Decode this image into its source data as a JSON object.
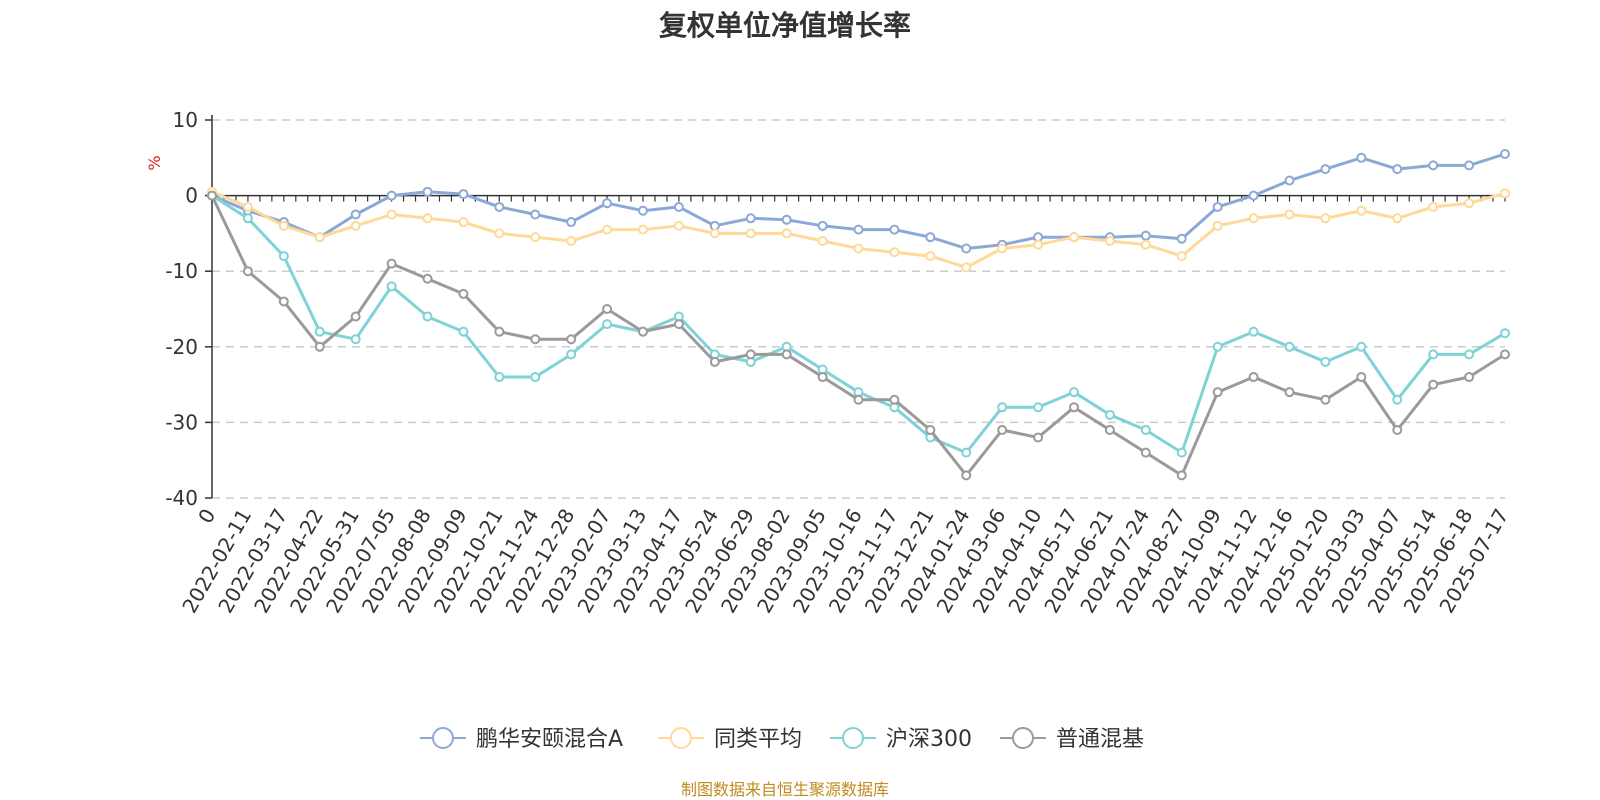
{
  "title": "复权单位净值增长率",
  "source": "制图数据来自恒生聚源数据库",
  "chart_data": {
    "type": "line",
    "title": "复权单位净值增长率",
    "ylabel": "%",
    "ylim": [
      -40,
      10
    ],
    "yticks": [
      10,
      0,
      -10,
      -20,
      -30,
      -40
    ],
    "grid": true,
    "legend_position": "bottom-center",
    "x": [
      "0",
      "2022-02-11",
      "2022-03-17",
      "2022-04-22",
      "2022-05-31",
      "2022-07-05",
      "2022-08-08",
      "2022-09-09",
      "2022-10-21",
      "2022-11-24",
      "2022-12-28",
      "2023-02-07",
      "2023-03-13",
      "2023-04-17",
      "2023-05-24",
      "2023-06-29",
      "2023-08-02",
      "2023-09-05",
      "2023-10-16",
      "2023-11-17",
      "2023-12-21",
      "2024-01-24",
      "2024-03-06",
      "2024-04-10",
      "2024-05-17",
      "2024-06-21",
      "2024-07-24",
      "2024-08-27",
      "2024-10-09",
      "2024-11-12",
      "2024-12-16",
      "2025-01-20",
      "2025-03-03",
      "2025-04-07",
      "2025-05-14",
      "2025-06-18",
      "2025-07-17"
    ],
    "series": [
      {
        "name": "鹏华安颐混合A",
        "color": "#8ba8d6",
        "values": [
          0,
          -2,
          -3.5,
          -5.5,
          -2.5,
          0,
          0.5,
          0.2,
          -1.5,
          -2.5,
          -3.5,
          -1,
          -2,
          -1.5,
          -4,
          -3,
          -3.2,
          -4,
          -4.5,
          -4.5,
          -5.5,
          -7,
          -6.5,
          -5.5,
          -5.5,
          -5.5,
          -5.3,
          -5.7,
          -1.5,
          0,
          2,
          3.5,
          5,
          3.5,
          4,
          4,
          5.5
        ]
      },
      {
        "name": "同类平均",
        "color": "#ffd99a",
        "values": [
          0.5,
          -1.5,
          -4,
          -5.5,
          -4,
          -2.5,
          -3,
          -3.5,
          -5,
          -5.5,
          -6,
          -4.5,
          -4.5,
          -4,
          -5,
          -5,
          -5,
          -6,
          -7,
          -7.5,
          -8,
          -9.5,
          -7,
          -6.5,
          -5.5,
          -6,
          -6.5,
          -8,
          -4,
          -3,
          -2.5,
          -3,
          -2,
          -3,
          -1.5,
          -1,
          0.3
        ]
      },
      {
        "name": "沪深300",
        "color": "#7dd3d6",
        "values": [
          0,
          -3,
          -8,
          -18,
          -19,
          -12,
          -16,
          -18,
          -24,
          -24,
          -21,
          -17,
          -18,
          -16,
          -21,
          -22,
          -20,
          -23,
          -26,
          -28,
          -32,
          -34,
          -28,
          -28,
          -26,
          -29,
          -31,
          -34,
          -20,
          -18,
          -20,
          -22,
          -20,
          -27,
          -21,
          -21,
          -18.2
        ]
      },
      {
        "name": "普通混基",
        "color": "#9a9a9a",
        "values": [
          0,
          -10,
          -14,
          -20,
          -16,
          -9,
          -11,
          -13,
          -18,
          -19,
          -19,
          -15,
          -18,
          -17,
          -22,
          -21,
          -21,
          -24,
          -27,
          -27,
          -31,
          -37,
          -31,
          -32,
          -28,
          -31,
          -34,
          -37,
          -26,
          -24,
          -26,
          -27,
          -24,
          -31,
          -25,
          -24,
          -21
        ]
      }
    ]
  }
}
